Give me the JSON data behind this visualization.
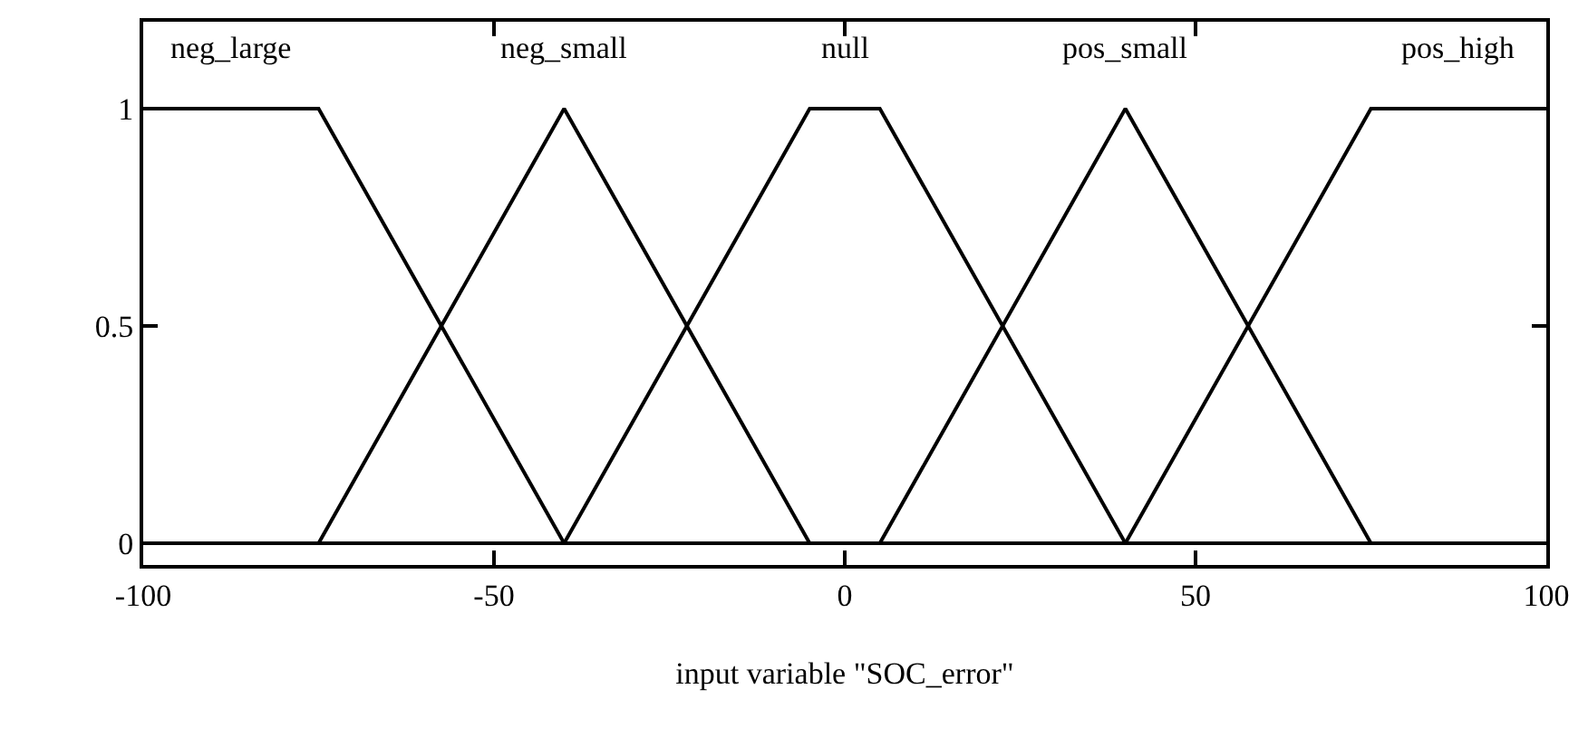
{
  "chart_data": {
    "type": "line",
    "xlabel": "input variable \"SOC_error\"",
    "series": [
      {
        "name": "neg_large",
        "color": "#000000",
        "x": [
          -100,
          -75,
          -40,
          100
        ],
        "values": [
          1,
          1,
          0,
          0
        ]
      },
      {
        "name": "neg_small",
        "color": "#000000",
        "x": [
          -100,
          -75,
          -40,
          -5,
          100
        ],
        "values": [
          0,
          0,
          1,
          0,
          0
        ]
      },
      {
        "name": "null",
        "color": "#000000",
        "x": [
          -100,
          -40,
          -5,
          5,
          40,
          100
        ],
        "values": [
          0,
          0,
          1,
          1,
          0,
          0
        ]
      },
      {
        "name": "pos_small",
        "color": "#000000",
        "x": [
          -100,
          5,
          40,
          75,
          100
        ],
        "values": [
          0,
          0,
          1,
          0,
          0
        ]
      },
      {
        "name": "pos_high",
        "color": "#000000",
        "x": [
          -100,
          40,
          75,
          100
        ],
        "values": [
          0,
          0,
          1,
          1
        ]
      }
    ],
    "xlim": [
      -100,
      100
    ],
    "xticks": [
      -100,
      -50,
      0,
      50,
      100
    ],
    "ylim": [
      -0.05,
      1.2
    ],
    "yticks": [
      0,
      0.5,
      1
    ],
    "legend": "top",
    "marker": "none",
    "line_style": "solid"
  }
}
